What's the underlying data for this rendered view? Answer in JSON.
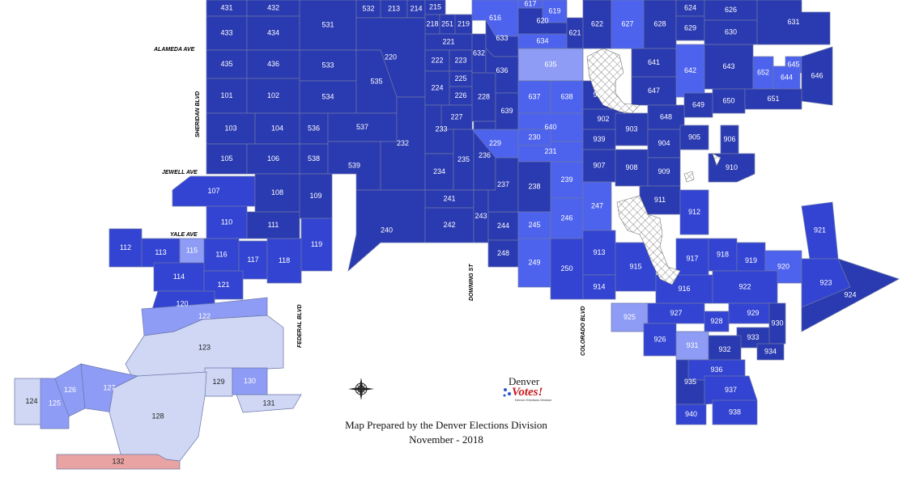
{
  "colors": {
    "very_dark": "#2a3ab0",
    "dark": "#3344d2",
    "medium": "#4d63ee",
    "light": "#8e9cf5",
    "very_light": "#cfd7f4",
    "red": "#eaa3a3",
    "excluded_hatch": "#888888"
  },
  "streets": [
    "ALAMEDA AVE",
    "SHERIDAN BLVD",
    "JEWELL AVE",
    "YALE AVE",
    "FEDERAL BLVD",
    "DOWNING ST",
    "COLORADO BLVD"
  ],
  "caption": {
    "line1": "Map Prepared by the Denver Elections Division",
    "line2": "November - 2018"
  },
  "logo": {
    "word1": "Denver",
    "word2": "Votes!",
    "tagline": "Denver Elections Division"
  },
  "icons": [
    "compass-rose-icon"
  ],
  "precincts": [
    {
      "id": "431",
      "shade": "very_dark"
    },
    {
      "id": "432",
      "shade": "very_dark"
    },
    {
      "id": "433",
      "shade": "very_dark"
    },
    {
      "id": "434",
      "shade": "very_dark"
    },
    {
      "id": "531",
      "shade": "very_dark"
    },
    {
      "id": "532",
      "shade": "very_dark"
    },
    {
      "id": "213",
      "shade": "very_dark"
    },
    {
      "id": "214",
      "shade": "very_dark"
    },
    {
      "id": "215",
      "shade": "very_dark"
    },
    {
      "id": "218",
      "shade": "very_dark"
    },
    {
      "id": "251",
      "shade": "very_dark"
    },
    {
      "id": "219",
      "shade": "very_dark"
    },
    {
      "id": "221",
      "shade": "very_dark"
    },
    {
      "id": "616",
      "shade": "medium"
    },
    {
      "id": "617",
      "shade": "medium"
    },
    {
      "id": "619",
      "shade": "medium"
    },
    {
      "id": "620",
      "shade": "very_dark"
    },
    {
      "id": "621",
      "shade": "very_dark"
    },
    {
      "id": "622",
      "shade": "very_dark"
    },
    {
      "id": "633",
      "shade": "very_dark"
    },
    {
      "id": "634",
      "shade": "medium"
    },
    {
      "id": "627",
      "shade": "medium"
    },
    {
      "id": "628",
      "shade": "very_dark"
    },
    {
      "id": "624",
      "shade": "very_dark"
    },
    {
      "id": "629",
      "shade": "very_dark"
    },
    {
      "id": "626",
      "shade": "very_dark"
    },
    {
      "id": "630",
      "shade": "very_dark"
    },
    {
      "id": "631",
      "shade": "very_dark"
    },
    {
      "id": "435",
      "shade": "very_dark"
    },
    {
      "id": "436",
      "shade": "very_dark"
    },
    {
      "id": "533",
      "shade": "very_dark"
    },
    {
      "id": "220",
      "shade": "very_dark"
    },
    {
      "id": "222",
      "shade": "very_dark"
    },
    {
      "id": "223",
      "shade": "very_dark"
    },
    {
      "id": "632",
      "shade": "very_dark"
    },
    {
      "id": "635",
      "shade": "light"
    },
    {
      "id": "641",
      "shade": "very_dark"
    },
    {
      "id": "642",
      "shade": "medium"
    },
    {
      "id": "643",
      "shade": "very_dark"
    },
    {
      "id": "645",
      "shade": "medium"
    },
    {
      "id": "652",
      "shade": "medium"
    },
    {
      "id": "644",
      "shade": "medium"
    },
    {
      "id": "646",
      "shade": "very_dark"
    },
    {
      "id": "101",
      "shade": "very_dark"
    },
    {
      "id": "102",
      "shade": "very_dark"
    },
    {
      "id": "534",
      "shade": "very_dark"
    },
    {
      "id": "535",
      "shade": "very_dark"
    },
    {
      "id": "225",
      "shade": "very_dark"
    },
    {
      "id": "224",
      "shade": "very_dark"
    },
    {
      "id": "226",
      "shade": "very_dark"
    },
    {
      "id": "228",
      "shade": "very_dark"
    },
    {
      "id": "636",
      "shade": "very_dark"
    },
    {
      "id": "637",
      "shade": "medium"
    },
    {
      "id": "638",
      "shade": "medium"
    },
    {
      "id": "901",
      "shade": "very_dark"
    },
    {
      "id": "647",
      "shade": "very_dark"
    },
    {
      "id": "649",
      "shade": "very_dark"
    },
    {
      "id": "650",
      "shade": "very_dark"
    },
    {
      "id": "651",
      "shade": "very_dark"
    },
    {
      "id": "639",
      "shade": "very_dark"
    },
    {
      "id": "648",
      "shade": "very_dark"
    },
    {
      "id": "902",
      "shade": "very_dark"
    },
    {
      "id": "103",
      "shade": "very_dark"
    },
    {
      "id": "104",
      "shade": "very_dark"
    },
    {
      "id": "536",
      "shade": "very_dark"
    },
    {
      "id": "537",
      "shade": "very_dark"
    },
    {
      "id": "227",
      "shade": "very_dark"
    },
    {
      "id": "233",
      "shade": "very_dark"
    },
    {
      "id": "640",
      "shade": "medium"
    },
    {
      "id": "903",
      "shade": "very_dark"
    },
    {
      "id": "905",
      "shade": "very_dark"
    },
    {
      "id": "906",
      "shade": "very_dark"
    },
    {
      "id": "229",
      "shade": "medium"
    },
    {
      "id": "230",
      "shade": "medium"
    },
    {
      "id": "939",
      "shade": "very_dark"
    },
    {
      "id": "904",
      "shade": "very_dark"
    },
    {
      "id": "231",
      "shade": "medium"
    },
    {
      "id": "105",
      "shade": "very_dark"
    },
    {
      "id": "106",
      "shade": "very_dark"
    },
    {
      "id": "538",
      "shade": "very_dark"
    },
    {
      "id": "539",
      "shade": "very_dark"
    },
    {
      "id": "232",
      "shade": "very_dark"
    },
    {
      "id": "234",
      "shade": "very_dark"
    },
    {
      "id": "235",
      "shade": "very_dark"
    },
    {
      "id": "236",
      "shade": "very_dark"
    },
    {
      "id": "907",
      "shade": "very_dark"
    },
    {
      "id": "908",
      "shade": "very_dark"
    },
    {
      "id": "909",
      "shade": "very_dark"
    },
    {
      "id": "910",
      "shade": "very_dark"
    },
    {
      "id": "107",
      "shade": "dark"
    },
    {
      "id": "108",
      "shade": "very_dark"
    },
    {
      "id": "109",
      "shade": "very_dark"
    },
    {
      "id": "237",
      "shade": "very_dark"
    },
    {
      "id": "238",
      "shade": "very_dark"
    },
    {
      "id": "239",
      "shade": "medium"
    },
    {
      "id": "241",
      "shade": "very_dark"
    },
    {
      "id": "911",
      "shade": "very_dark"
    },
    {
      "id": "247",
      "shade": "medium"
    },
    {
      "id": "912",
      "shade": "dark"
    },
    {
      "id": "110",
      "shade": "dark"
    },
    {
      "id": "240",
      "shade": "very_dark"
    },
    {
      "id": "242",
      "shade": "very_dark"
    },
    {
      "id": "243",
      "shade": "very_dark"
    },
    {
      "id": "244",
      "shade": "very_dark"
    },
    {
      "id": "245",
      "shade": "medium"
    },
    {
      "id": "246",
      "shade": "medium"
    },
    {
      "id": "111",
      "shade": "very_dark"
    },
    {
      "id": "921",
      "shade": "dark"
    },
    {
      "id": "112",
      "shade": "dark"
    },
    {
      "id": "113",
      "shade": "dark"
    },
    {
      "id": "115",
      "shade": "light"
    },
    {
      "id": "116",
      "shade": "dark"
    },
    {
      "id": "117",
      "shade": "dark"
    },
    {
      "id": "118",
      "shade": "dark"
    },
    {
      "id": "119",
      "shade": "dark"
    },
    {
      "id": "248",
      "shade": "very_dark"
    },
    {
      "id": "913",
      "shade": "dark"
    },
    {
      "id": "917",
      "shade": "dark"
    },
    {
      "id": "918",
      "shade": "dark"
    },
    {
      "id": "919",
      "shade": "dark"
    },
    {
      "id": "920",
      "shade": "medium"
    },
    {
      "id": "249",
      "shade": "medium"
    },
    {
      "id": "915",
      "shade": "dark"
    },
    {
      "id": "114",
      "shade": "dark"
    },
    {
      "id": "250",
      "shade": "dark"
    },
    {
      "id": "121",
      "shade": "dark"
    },
    {
      "id": "914",
      "shade": "dark"
    },
    {
      "id": "916",
      "shade": "dark"
    },
    {
      "id": "922",
      "shade": "dark"
    },
    {
      "id": "923",
      "shade": "dark"
    },
    {
      "id": "924",
      "shade": "very_dark"
    },
    {
      "id": "120",
      "shade": "dark"
    },
    {
      "id": "925",
      "shade": "light"
    },
    {
      "id": "927",
      "shade": "dark"
    },
    {
      "id": "929",
      "shade": "dark"
    },
    {
      "id": "122",
      "shade": "light"
    },
    {
      "id": "926",
      "shade": "dark"
    },
    {
      "id": "928",
      "shade": "dark"
    },
    {
      "id": "930",
      "shade": "very_dark"
    },
    {
      "id": "931",
      "shade": "light"
    },
    {
      "id": "933",
      "shade": "very_dark"
    },
    {
      "id": "123",
      "shade": "very_light"
    },
    {
      "id": "932",
      "shade": "very_dark"
    },
    {
      "id": "934",
      "shade": "very_dark"
    },
    {
      "id": "936",
      "shade": "dark"
    },
    {
      "id": "129",
      "shade": "very_light"
    },
    {
      "id": "130",
      "shade": "light"
    },
    {
      "id": "127",
      "shade": "light"
    },
    {
      "id": "126",
      "shade": "light"
    },
    {
      "id": "124",
      "shade": "very_light"
    },
    {
      "id": "125",
      "shade": "light"
    },
    {
      "id": "128",
      "shade": "very_light"
    },
    {
      "id": "131",
      "shade": "very_light"
    },
    {
      "id": "935",
      "shade": "very_dark"
    },
    {
      "id": "937",
      "shade": "dark"
    },
    {
      "id": "938",
      "shade": "dark"
    },
    {
      "id": "940",
      "shade": "dark"
    },
    {
      "id": "132",
      "shade": "red"
    }
  ]
}
